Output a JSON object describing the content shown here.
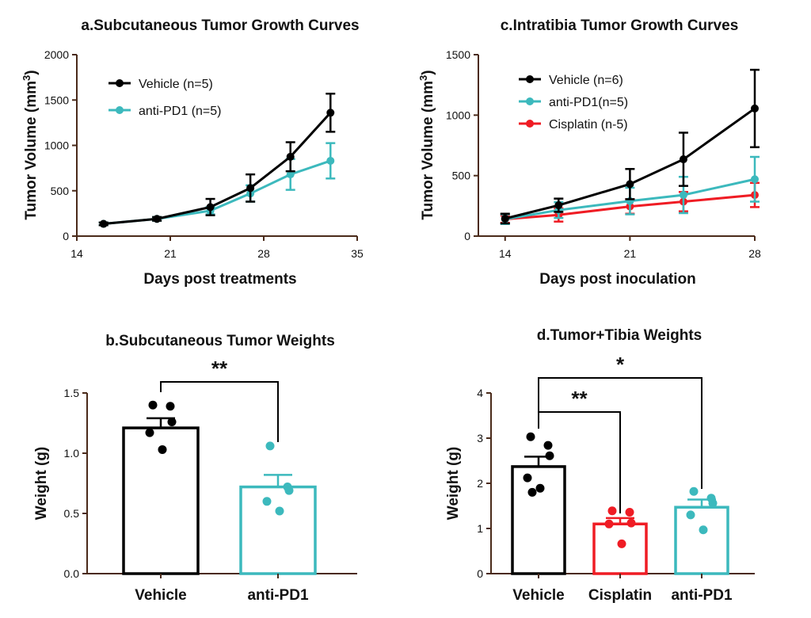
{
  "colors": {
    "black": "#000000",
    "teal": "#3cb9bd",
    "red": "#ef1c24",
    "axis": "#4a2a1a"
  },
  "chart_data": [
    {
      "id": "a",
      "type": "line",
      "title": "a.Subcutaneous Tumor Growth Curves",
      "xlabel": "Days post treatments",
      "ylabel": "Tumor Volume (mm",
      "ylabel_sup": "3",
      "ylabel_end": ")",
      "xlim": [
        14,
        35
      ],
      "ylim": [
        0,
        2000
      ],
      "xticks": [
        14,
        21,
        28,
        35
      ],
      "yticks": [
        0,
        500,
        1000,
        1500,
        2000
      ],
      "legend": "top-left",
      "series": [
        {
          "name": "Vehicle (n=5)",
          "color": "#000000",
          "x": [
            16,
            20,
            24,
            27,
            30,
            33
          ],
          "y": [
            135,
            190,
            320,
            530,
            875,
            1360
          ],
          "err": [
            15,
            20,
            90,
            150,
            160,
            210
          ]
        },
        {
          "name": "anti-PD1 (n=5)",
          "color": "#3cb9bd",
          "x": [
            16,
            20,
            24,
            27,
            30,
            33
          ],
          "y": [
            135,
            190,
            280,
            470,
            680,
            830
          ],
          "err": [
            15,
            20,
            40,
            90,
            170,
            195
          ]
        }
      ]
    },
    {
      "id": "c",
      "type": "line",
      "title": "c.Intratibia Tumor Growth Curves",
      "xlabel": "Days post inoculation",
      "ylabel": "Tumor Volume (mm",
      "ylabel_sup": "3",
      "ylabel_end": ")",
      "xlim": [
        12.5,
        28
      ],
      "ylim": [
        0,
        1500
      ],
      "xticks": [
        14,
        21,
        28
      ],
      "yticks": [
        0,
        500,
        1000,
        1500
      ],
      "legend": "top-left",
      "series": [
        {
          "name": "Vehicle (n=6)",
          "color": "#000000",
          "x": [
            14,
            17,
            21,
            24,
            28
          ],
          "y": [
            145,
            255,
            430,
            635,
            1055
          ],
          "err": [
            40,
            55,
            125,
            220,
            320
          ]
        },
        {
          "name": "anti-PD1(n=5)",
          "color": "#3cb9bd",
          "x": [
            14,
            17,
            21,
            24,
            28
          ],
          "y": [
            140,
            215,
            290,
            340,
            470
          ],
          "err": [
            40,
            65,
            110,
            150,
            185
          ]
        },
        {
          "name": "Cisplatin (n-5)",
          "color": "#ef1c24",
          "x": [
            14,
            17,
            21,
            24,
            28
          ],
          "y": [
            140,
            175,
            245,
            285,
            340
          ],
          "err": [
            30,
            55,
            60,
            80,
            100
          ]
        }
      ]
    },
    {
      "id": "b",
      "type": "bar",
      "title": "b.Subcutaneous Tumor Weights",
      "xlabel": "",
      "ylabel": "Weight (g)",
      "ylim": [
        0,
        1.5
      ],
      "yticks": [
        "0.0",
        "0.5",
        "1.0",
        "1.5"
      ],
      "ytick_values": [
        0,
        0.5,
        1.0,
        1.5
      ],
      "categories": [
        "Vehicle",
        "anti-PD1"
      ],
      "values": [
        1.21,
        0.72
      ],
      "err": [
        0.08,
        0.1
      ],
      "colors": [
        "#000000",
        "#3cb9bd"
      ],
      "points": [
        [
          1.4,
          1.39,
          1.26,
          1.17,
          1.03
        ],
        [
          1.06,
          0.72,
          0.69,
          0.6,
          0.52
        ]
      ],
      "significance": [
        {
          "from": 0,
          "to": 1,
          "label": "**"
        }
      ]
    },
    {
      "id": "d",
      "type": "bar",
      "title": "d.Tumor+Tibia Weights",
      "xlabel": "",
      "ylabel": "Weight (g)",
      "ylim": [
        0,
        4
      ],
      "yticks": [
        "0",
        "1",
        "2",
        "3",
        "4"
      ],
      "ytick_values": [
        0,
        1,
        2,
        3,
        4
      ],
      "categories": [
        "Vehicle",
        "Cisplatin",
        "anti-PD1"
      ],
      "values": [
        2.37,
        1.1,
        1.47
      ],
      "err": [
        0.22,
        0.13,
        0.17
      ],
      "colors": [
        "#000000",
        "#ef1c24",
        "#3cb9bd"
      ],
      "points": [
        [
          3.03,
          2.84,
          2.61,
          2.12,
          1.89,
          1.8
        ],
        [
          1.39,
          1.36,
          1.12,
          1.1,
          0.66
        ],
        [
          1.82,
          1.67,
          1.56,
          1.3,
          0.97
        ]
      ],
      "significance": [
        {
          "from": 0,
          "to": 1,
          "label": "**"
        },
        {
          "from": 0,
          "to": 2,
          "label": "*"
        }
      ]
    }
  ]
}
